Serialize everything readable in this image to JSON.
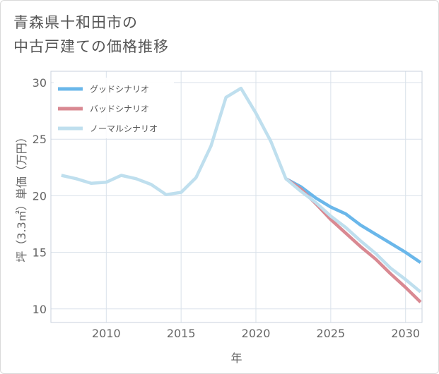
{
  "header": {
    "title_line1": "青森県十和田市の",
    "title_line2": "中古戸建ての価格推移"
  },
  "colors": {
    "good": "#6ab7ea",
    "bad": "#d98992",
    "normal": "#bfdfee",
    "grid": "#d9e1ea",
    "axis": "#666666"
  },
  "chart_data": {
    "type": "line",
    "title": "青森県十和田市の中古戸建ての価格推移",
    "xlabel": "年",
    "ylabel": "坪（3.3㎡）単価（万円）",
    "xlim": [
      2006.3,
      2031.1
    ],
    "ylim": [
      8.8,
      31
    ],
    "xticks": [
      2010,
      2015,
      2020,
      2025,
      2030
    ],
    "yticks": [
      10,
      15,
      20,
      25,
      30
    ],
    "legend_position": "top-left",
    "series": [
      {
        "name": "グッドシナリオ",
        "key": "good",
        "x": [
          2022,
          2023,
          2024,
          2025,
          2026,
          2027,
          2028,
          2029,
          2030,
          2031
        ],
        "y": [
          21.5,
          20.8,
          19.8,
          19.0,
          18.4,
          17.4,
          16.6,
          15.8,
          15.0,
          14.1
        ]
      },
      {
        "name": "バッドシナリオ",
        "key": "bad",
        "x": [
          2022,
          2023,
          2024,
          2025,
          2026,
          2027,
          2028,
          2029,
          2030,
          2031
        ],
        "y": [
          21.5,
          20.6,
          19.3,
          17.9,
          16.7,
          15.5,
          14.4,
          13.1,
          11.9,
          10.6
        ]
      },
      {
        "name": "ノーマルシナリオ",
        "key": "normal",
        "x": [
          2007,
          2008,
          2009,
          2010,
          2011,
          2012,
          2013,
          2014,
          2015,
          2016,
          2017,
          2018,
          2019,
          2020,
          2021,
          2022,
          2023,
          2024,
          2025,
          2026,
          2027,
          2028,
          2029,
          2030,
          2031
        ],
        "y": [
          21.8,
          21.5,
          21.1,
          21.2,
          21.8,
          21.5,
          21.0,
          20.1,
          20.3,
          21.6,
          24.4,
          28.7,
          29.5,
          27.3,
          24.8,
          21.5,
          20.4,
          19.4,
          18.2,
          17.2,
          16.0,
          14.9,
          13.6,
          12.6,
          11.5
        ]
      }
    ]
  }
}
